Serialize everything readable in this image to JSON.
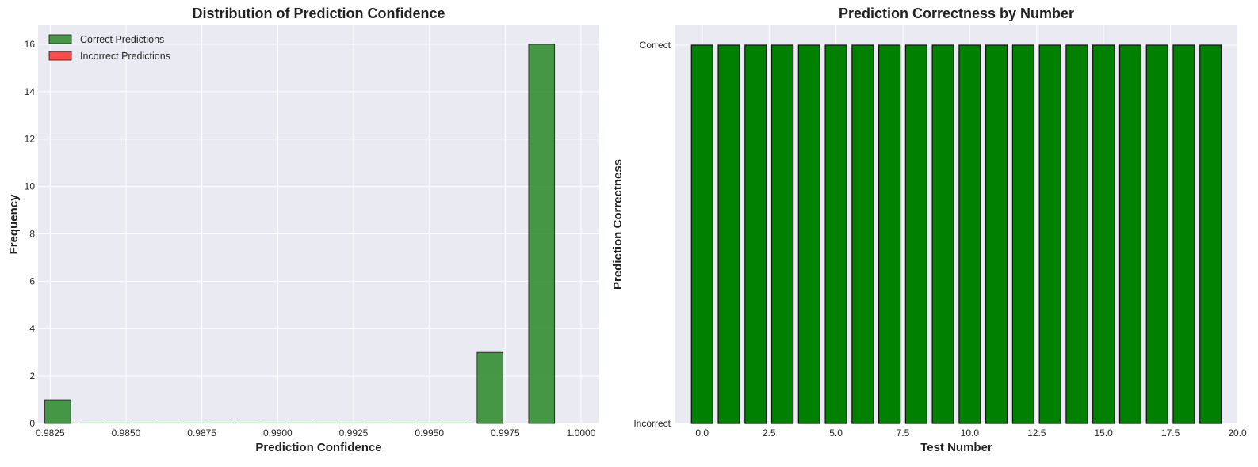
{
  "chart_data": [
    {
      "type": "bar",
      "subtype": "histogram",
      "title": "Distribution of Prediction Confidence",
      "xlabel": "Prediction Confidence",
      "ylabel": "Frequency",
      "xlim": [
        0.9821,
        1.0006
      ],
      "ylim": [
        0,
        16.8
      ],
      "xticks": [
        "0.9825",
        "0.9850",
        "0.9875",
        "0.9900",
        "0.9925",
        "0.9950",
        "0.9975",
        "1.0000"
      ],
      "yticks": [
        "0",
        "2",
        "4",
        "6",
        "8",
        "10",
        "12",
        "14",
        "16"
      ],
      "grid": true,
      "legend_position": "upper-left",
      "bin_width": 0.000855,
      "series": [
        {
          "name": "Correct Predictions",
          "color": "#2e8b2e",
          "bins": [
            {
              "x": 0.98275,
              "value": 1
            },
            {
              "x": 0.997,
              "value": 3
            },
            {
              "x": 0.9987,
              "value": 16
            }
          ]
        },
        {
          "name": "Incorrect Predictions",
          "color": "#ff3333",
          "bins": []
        }
      ],
      "zero_bin_ranges": [
        [
          0.98345,
          0.9964
        ]
      ]
    },
    {
      "type": "bar",
      "title": "Prediction Correctness by Number",
      "xlabel": "Test Number",
      "ylabel": "Prediction Correctness",
      "xlim": [
        -1.0,
        20.0
      ],
      "ylim": [
        0,
        1
      ],
      "xticks": [
        "0.0",
        "2.5",
        "5.0",
        "7.5",
        "10.0",
        "12.5",
        "15.0",
        "17.5",
        "20.0"
      ],
      "yticks": [
        "Incorrect",
        "Correct"
      ],
      "grid": true,
      "bar_color": "#008000",
      "bar_width": 0.8,
      "categories": [
        0,
        1,
        2,
        3,
        4,
        5,
        6,
        7,
        8,
        9,
        10,
        11,
        12,
        13,
        14,
        15,
        16,
        17,
        18,
        19
      ],
      "values": [
        1,
        1,
        1,
        1,
        1,
        1,
        1,
        1,
        1,
        1,
        1,
        1,
        1,
        1,
        1,
        1,
        1,
        1,
        1,
        1
      ]
    }
  ]
}
